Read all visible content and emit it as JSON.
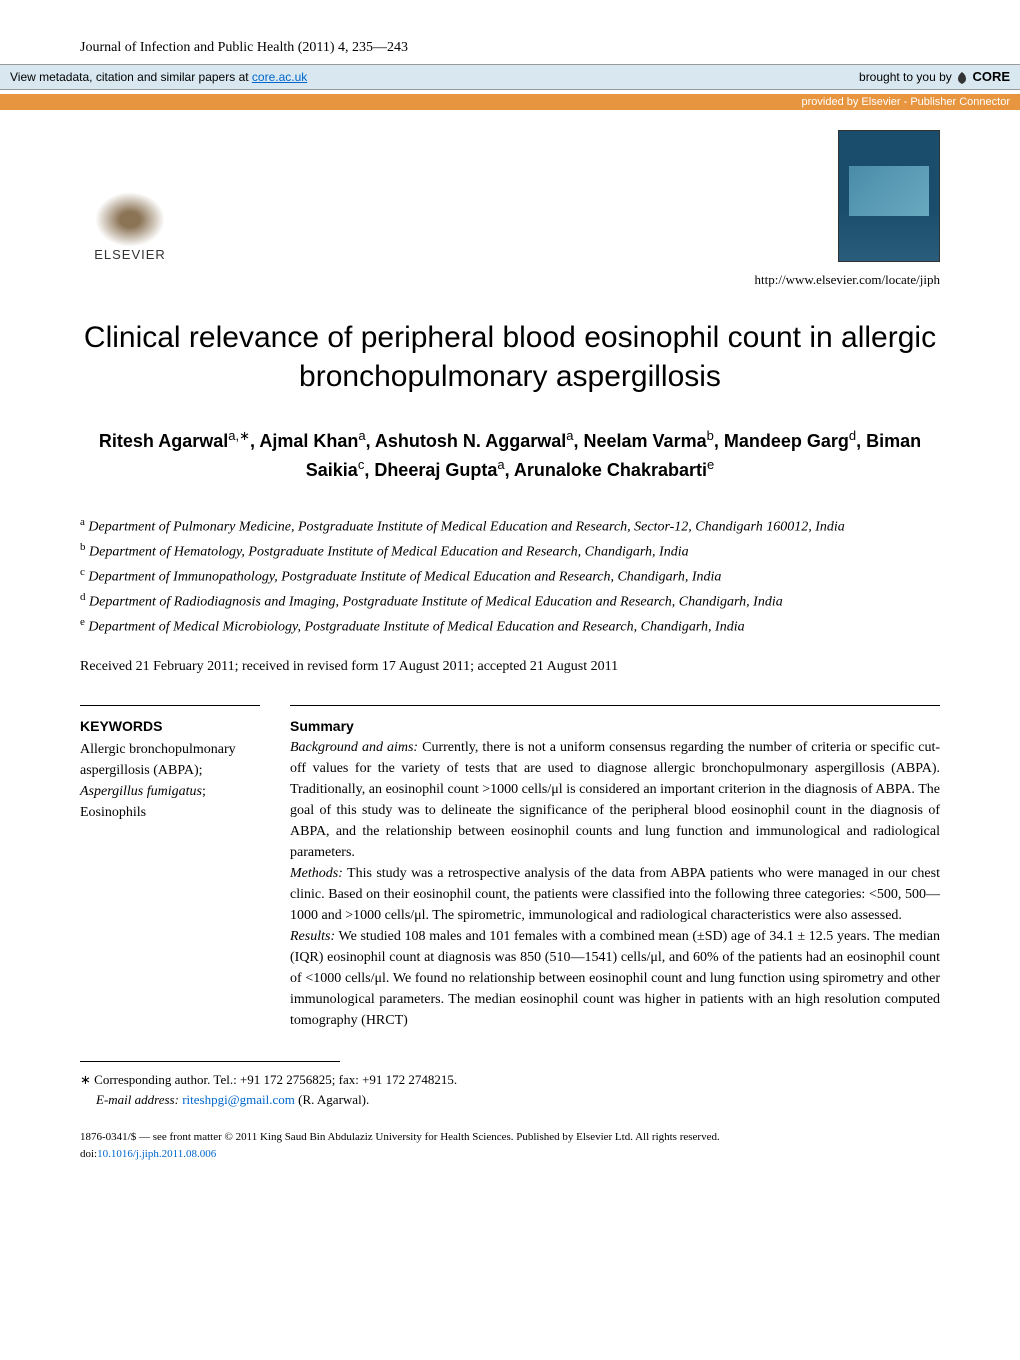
{
  "journal_header": "Journal of Infection and Public Health (2011) 4, 235—243",
  "core_banner": {
    "left_prefix": "View metadata, citation and similar papers at ",
    "link_text": "core.ac.uk",
    "right_prefix": "brought to you by ",
    "logo_text": "CORE"
  },
  "core_banner_2": "provided by Elsevier - Publisher Connector",
  "elsevier_label": "ELSEVIER",
  "journal_url": "http://www.elsevier.com/locate/jiph",
  "title": "Clinical relevance of peripheral blood eosinophil count in allergic bronchopulmonary aspergillosis",
  "authors_html": "Ritesh Agarwal<sup>a,∗</sup>, Ajmal Khan<sup>a</sup>, Ashutosh N. Aggarwal<sup>a</sup>, Neelam Varma<sup>b</sup>, Mandeep Garg<sup>d</sup>, Biman Saikia<sup>c</sup>, Dheeraj Gupta<sup>a</sup>, Arunaloke Chakrabarti<sup>e</sup>",
  "affiliations": [
    {
      "sup": "a",
      "text": "Department of Pulmonary Medicine, Postgraduate Institute of Medical Education and Research, Sector-12, Chandigarh 160012, India"
    },
    {
      "sup": "b",
      "text": "Department of Hematology, Postgraduate Institute of Medical Education and Research, Chandigarh, India"
    },
    {
      "sup": "c",
      "text": "Department of Immunopathology, Postgraduate Institute of Medical Education and Research, Chandigarh, India"
    },
    {
      "sup": "d",
      "text": "Department of Radiodiagnosis and Imaging, Postgraduate Institute of Medical Education and Research, Chandigarh, India"
    },
    {
      "sup": "e",
      "text": "Department of Medical Microbiology, Postgraduate Institute of Medical Education and Research, Chandigarh, India"
    }
  ],
  "dates": "Received 21 February 2011; received in revised form 17 August 2011; accepted 21 August 2011",
  "keywords": {
    "heading": "KEYWORDS",
    "items": "Allergic bronchopulmonary aspergillosis (ABPA); <i>Aspergillus fumigatus</i>; Eosinophils"
  },
  "abstract": {
    "heading": "Summary",
    "sections": [
      {
        "label": "Background and aims:",
        "text": "Currently, there is not a uniform consensus regarding the number of criteria or specific cut-off values for the variety of tests that are used to diagnose allergic bronchopulmonary aspergillosis (ABPA). Traditionally, an eosinophil count >1000 cells/μl is considered an important criterion in the diagnosis of ABPA. The goal of this study was to delineate the significance of the peripheral blood eosinophil count in the diagnosis of ABPA, and the relationship between eosinophil counts and lung function and immunological and radiological parameters."
      },
      {
        "label": "Methods:",
        "text": "This study was a retrospective analysis of the data from ABPA patients who were managed in our chest clinic. Based on their eosinophil count, the patients were classified into the following three categories: <500, 500—1000 and >1000 cells/μl. The spirometric, immunological and radiological characteristics were also assessed."
      },
      {
        "label": "Results:",
        "text": "We studied 108 males and 101 females with a combined mean (±SD) age of 34.1 ± 12.5 years. The median (IQR) eosinophil count at diagnosis was 850 (510—1541) cells/μl, and 60% of the patients had an eosinophil count of <1000 cells/μl. We found no relationship between eosinophil count and lung function using spirometry and other immunological parameters. The median eosinophil count was higher in patients with an high resolution computed tomography (HRCT)"
      }
    ]
  },
  "footnotes": {
    "corresponding": "∗ Corresponding author. Tel.: +91 172 2756825; fax: +91 172 2748215.",
    "email_label": "E-mail address:",
    "email": "riteshpgi@gmail.com",
    "email_author": " (R. Agarwal)."
  },
  "copyright": {
    "line1": "1876-0341/$ — see front matter © 2011 King Saud Bin Abdulaziz University for Health Sciences. Published by Elsevier Ltd. All rights reserved.",
    "doi_prefix": "doi:",
    "doi": "10.1016/j.jiph.2011.08.006"
  },
  "colors": {
    "link": "#0066cc",
    "banner_bg": "#d9e8f0",
    "banner2_bg": "#e89540"
  }
}
